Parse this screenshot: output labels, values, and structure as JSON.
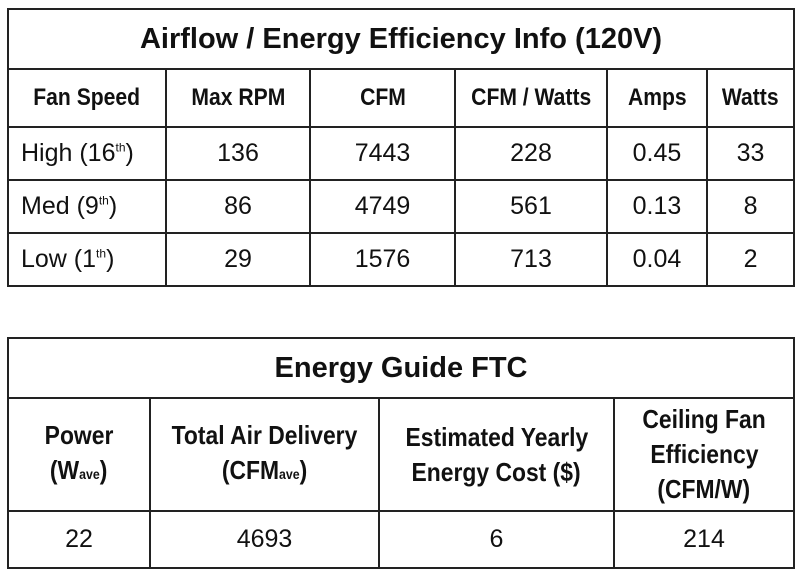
{
  "table1": {
    "title": "Airflow / Energy Efficiency Info (120V)",
    "headers": [
      "Fan Speed",
      "Max RPM",
      "CFM",
      "CFM / Watts",
      "Amps",
      "Watts"
    ],
    "rows": [
      {
        "speed": "High (16",
        "sup": "th",
        "close": ")",
        "rpm": "136",
        "cfm": "7443",
        "cfm_watts": "228",
        "amps": "0.45",
        "watts": "33"
      },
      {
        "speed": "Med (9",
        "sup": "th",
        "close": ")",
        "rpm": "86",
        "cfm": "4749",
        "cfm_watts": "561",
        "amps": "0.13",
        "watts": "8"
      },
      {
        "speed": "Low (1",
        "sup": "th",
        "close": ")",
        "rpm": "29",
        "cfm": "1576",
        "cfm_watts": "713",
        "amps": "0.04",
        "watts": "2"
      }
    ]
  },
  "table2": {
    "title": "Energy Guide FTC",
    "headers": {
      "power_line1": "Power",
      "power_line2_main": "(W",
      "power_line2_sub": "ave",
      "power_line2_close": ")",
      "delivery_line1": "Total Air Delivery",
      "delivery_line2_main": "(CFM",
      "delivery_line2_sub": "ave",
      "delivery_line2_close": ")",
      "cost_line1": "Estimated Yearly",
      "cost_line2": "Energy Cost ($)",
      "eff_line1": "Ceiling Fan",
      "eff_line2": "Efficiency",
      "eff_line3": "(CFM/W)"
    },
    "values": {
      "power": "22",
      "delivery": "4693",
      "cost": "6",
      "efficiency": "214"
    }
  }
}
